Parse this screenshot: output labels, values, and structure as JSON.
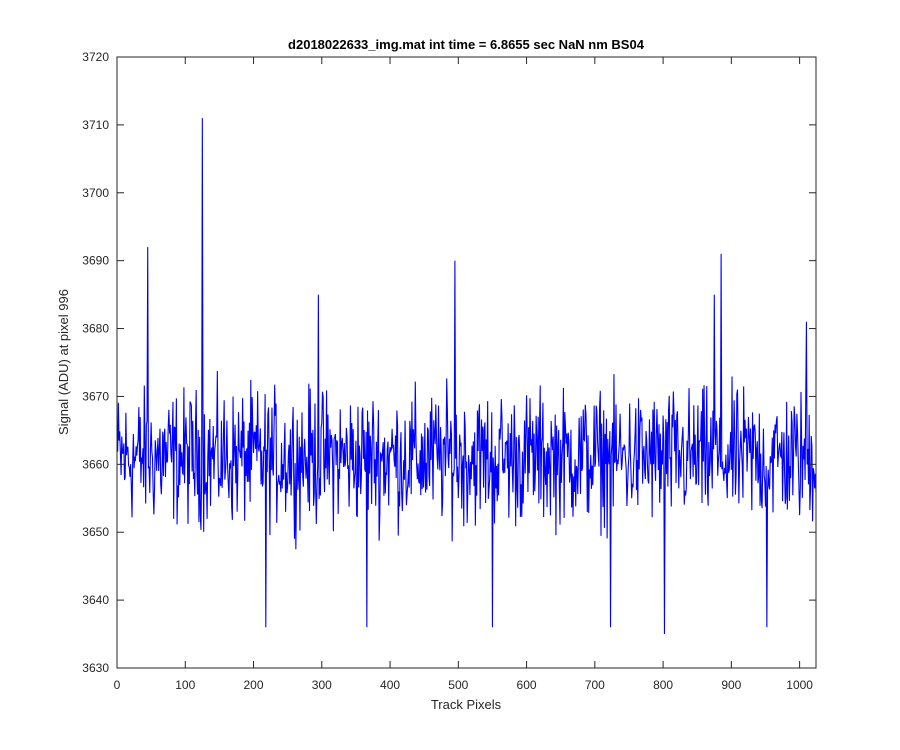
{
  "chart_data": {
    "type": "line",
    "title": "d2018022633_img.mat int time = 6.8655 sec  NaN nm BS04",
    "xlabel": "Track Pixels",
    "ylabel": "Signal (ADU) at pixel 996",
    "xlim": [
      0,
      1024
    ],
    "ylim": [
      3630,
      3720
    ],
    "xticks": [
      0,
      100,
      200,
      300,
      400,
      500,
      600,
      700,
      800,
      900,
      1000
    ],
    "yticks": [
      3630,
      3640,
      3650,
      3660,
      3670,
      3680,
      3690,
      3700,
      3710,
      3720
    ],
    "grid": false,
    "series_color": "#0000ff",
    "series": [
      {
        "x_start": 1,
        "x_step": 1,
        "notes_peaks": "x-values of notable spikes listed separately",
        "values_approx_baseline": 3661,
        "noise_range": [
          3646,
          3676
        ]
      }
    ],
    "peaks": [
      {
        "x": 45,
        "y": 3692
      },
      {
        "x": 125,
        "y": 3711
      },
      {
        "x": 295,
        "y": 3685
      },
      {
        "x": 495,
        "y": 3690
      },
      {
        "x": 885,
        "y": 3691
      },
      {
        "x": 875,
        "y": 3685
      },
      {
        "x": 1010,
        "y": 3681
      }
    ],
    "troughs": [
      {
        "x": 218,
        "y": 3636
      },
      {
        "x": 366,
        "y": 3636
      },
      {
        "x": 550,
        "y": 3636
      },
      {
        "x": 723,
        "y": 3636
      },
      {
        "x": 802,
        "y": 3635
      },
      {
        "x": 952,
        "y": 3636
      }
    ]
  }
}
